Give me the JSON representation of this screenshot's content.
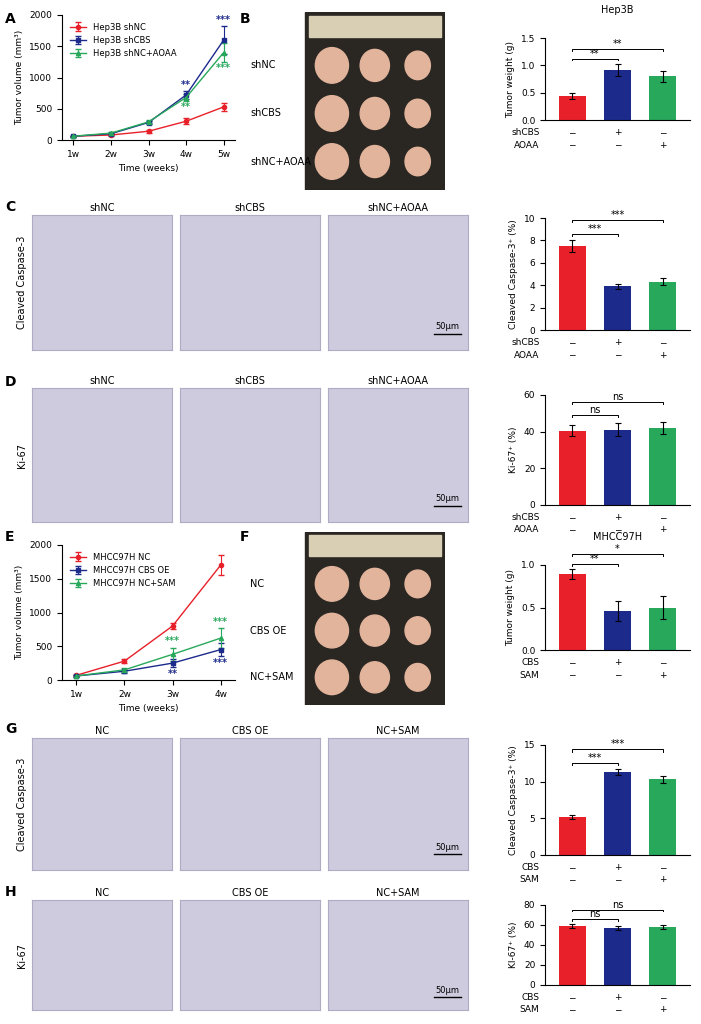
{
  "chart_data": [
    {
      "panel": "A",
      "type": "line",
      "x_label": "Time (weeks)",
      "y_label": "Tumor volume (mm³)",
      "categories": [
        "1w",
        "2w",
        "3w",
        "4w",
        "5w"
      ],
      "ylim": [
        0,
        2000
      ],
      "yticks": [
        0,
        500,
        1000,
        1500,
        2000
      ],
      "legend": "upper left",
      "series": [
        {
          "name": "Hep3B shNC",
          "color": "#e8202a",
          "marker": "circle",
          "values": [
            60,
            80,
            140,
            300,
            530
          ],
          "errors": [
            10,
            15,
            20,
            50,
            60
          ]
        },
        {
          "name": "Hep3B shCBS",
          "color": "#1c2a8c",
          "marker": "square",
          "values": [
            60,
            100,
            280,
            720,
            1600
          ],
          "errors": [
            10,
            15,
            20,
            60,
            220
          ]
        },
        {
          "name": "Hep3B shNC+AOAA",
          "color": "#27a85b",
          "marker": "triangle",
          "values": [
            60,
            110,
            290,
            680,
            1400
          ],
          "errors": [
            10,
            15,
            25,
            50,
            150
          ]
        }
      ],
      "annotations": [
        {
          "x": "4w",
          "series": "Hep3B shCBS",
          "text": "**"
        },
        {
          "x": "4w",
          "series": "Hep3B shNC+AOAA",
          "text": "**"
        },
        {
          "x": "5w",
          "series": "Hep3B shCBS",
          "text": "***"
        },
        {
          "x": "5w",
          "series": "Hep3B shNC+AOAA",
          "text": "***"
        }
      ]
    },
    {
      "panel": "B",
      "type": "bar",
      "title": "Hep3B",
      "y_label": "Tumor weight (g)",
      "categories": [
        null,
        null,
        null
      ],
      "values": [
        0.44,
        0.92,
        0.8
      ],
      "errors": [
        0.05,
        0.11,
        0.1
      ],
      "colors": [
        "#e8202a",
        "#1c2a8c",
        "#27a85b"
      ],
      "ylim": [
        0,
        1.5
      ],
      "yticks": [
        {
          "value": 0,
          "label": "0.0"
        },
        {
          "value": 0.5,
          "label": "0.5"
        },
        {
          "value": 1.0,
          "label": "1.0"
        },
        {
          "value": 1.5,
          "label": "1.5"
        }
      ],
      "condition_table": [
        {
          "label": "shCBS",
          "marks": [
            "−",
            "+",
            "−"
          ]
        },
        {
          "label": "AOAA",
          "marks": [
            "−",
            "−",
            "+"
          ]
        }
      ],
      "comparisons": [
        {
          "from": 0,
          "to": 1,
          "label": "**"
        },
        {
          "from": 0,
          "to": 2,
          "label": "**"
        }
      ]
    },
    {
      "panel": "C",
      "type": "bar",
      "y_label": "Cleaved Caspase-3⁺ (%)",
      "categories": [
        null,
        null,
        null
      ],
      "values": [
        7.5,
        3.9,
        4.3
      ],
      "errors": [
        0.5,
        0.2,
        0.3
      ],
      "colors": [
        "#e8202a",
        "#1c2a8c",
        "#27a85b"
      ],
      "ylim": [
        0,
        10
      ],
      "yticks": [
        0,
        2,
        4,
        6,
        8,
        10
      ],
      "condition_table": [
        {
          "label": "shCBS",
          "marks": [
            "−",
            "+",
            "−"
          ]
        },
        {
          "label": "AOAA",
          "marks": [
            "−",
            "−",
            "+"
          ]
        }
      ],
      "comparisons": [
        {
          "from": 0,
          "to": 1,
          "label": "***"
        },
        {
          "from": 0,
          "to": 2,
          "label": "***"
        }
      ]
    },
    {
      "panel": "D",
      "type": "bar",
      "y_label": "Ki-67⁺ (%)",
      "categories": [
        null,
        null,
        null
      ],
      "values": [
        40.5,
        41,
        42
      ],
      "errors": [
        3,
        3.5,
        3.5
      ],
      "colors": [
        "#e8202a",
        "#1c2a8c",
        "#27a85b"
      ],
      "ylim": [
        0,
        60
      ],
      "yticks": [
        0,
        20,
        40,
        60
      ],
      "condition_table": [
        {
          "label": "shCBS",
          "marks": [
            "−",
            "+",
            "−"
          ]
        },
        {
          "label": "AOAA",
          "marks": [
            "−",
            "−",
            "+"
          ]
        }
      ],
      "comparisons": [
        {
          "from": 0,
          "to": 1,
          "label": "ns"
        },
        {
          "from": 0,
          "to": 2,
          "label": "ns"
        }
      ]
    },
    {
      "panel": "E",
      "type": "line",
      "x_label": "Time (weeks)",
      "y_label": "Tumor volume (mm³)",
      "categories": [
        "1w",
        "2w",
        "3w",
        "4w"
      ],
      "ylim": [
        0,
        2000
      ],
      "yticks": [
        0,
        500,
        1000,
        1500,
        2000
      ],
      "legend": "upper left",
      "series": [
        {
          "name": "MHCC97H NC",
          "color": "#e8202a",
          "marker": "circle",
          "values": [
            70,
            280,
            800,
            1700
          ],
          "errors": [
            10,
            30,
            50,
            150
          ]
        },
        {
          "name": "MHCC97H CBS OE",
          "color": "#1c2a8c",
          "marker": "square",
          "values": [
            60,
            130,
            250,
            450
          ],
          "errors": [
            10,
            20,
            60,
            100
          ]
        },
        {
          "name": "MHCC97H NC+SAM",
          "color": "#27a85b",
          "marker": "triangle",
          "values": [
            60,
            150,
            380,
            620
          ],
          "errors": [
            10,
            30,
            100,
            150
          ]
        }
      ],
      "annotations": [
        {
          "x": "3w",
          "series": "MHCC97H NC+SAM",
          "text": "***"
        },
        {
          "x": "3w",
          "series": "MHCC97H CBS OE",
          "text": "**"
        },
        {
          "x": "4w",
          "series": "MHCC97H NC+SAM",
          "text": "***"
        },
        {
          "x": "4w",
          "series": "MHCC97H CBS OE",
          "text": "***"
        }
      ]
    },
    {
      "panel": "F",
      "type": "bar",
      "title": "MHCC97H",
      "y_label": "Tumor weight (g)",
      "categories": [
        null,
        null,
        null
      ],
      "values": [
        0.89,
        0.46,
        0.5
      ],
      "errors": [
        0.06,
        0.12,
        0.13
      ],
      "colors": [
        "#e8202a",
        "#1c2a8c",
        "#27a85b"
      ],
      "ylim": [
        0,
        1.0
      ],
      "yticks": [
        {
          "value": 0,
          "label": "0.0"
        },
        {
          "value": 0.5,
          "label": "0.5"
        },
        {
          "value": 1.0,
          "label": "1.0"
        }
      ],
      "condition_table": [
        {
          "label": "CBS",
          "marks": [
            "−",
            "+",
            "−"
          ]
        },
        {
          "label": "SAM",
          "marks": [
            "−",
            "−",
            "+"
          ]
        }
      ],
      "comparisons": [
        {
          "from": 0,
          "to": 1,
          "label": "**"
        },
        {
          "from": 0,
          "to": 2,
          "label": "*"
        }
      ]
    },
    {
      "panel": "G",
      "type": "bar",
      "y_label": "Cleaved Caspase-3⁺ (%)",
      "categories": [
        null,
        null,
        null
      ],
      "values": [
        5.2,
        11.3,
        10.3
      ],
      "errors": [
        0.3,
        0.4,
        0.5
      ],
      "colors": [
        "#e8202a",
        "#1c2a8c",
        "#27a85b"
      ],
      "ylim": [
        0,
        15
      ],
      "yticks": [
        0,
        5,
        10,
        15
      ],
      "condition_table": [
        {
          "label": "CBS",
          "marks": [
            "−",
            "+",
            "−"
          ]
        },
        {
          "label": "SAM",
          "marks": [
            "−",
            "−",
            "+"
          ]
        }
      ],
      "comparisons": [
        {
          "from": 0,
          "to": 1,
          "label": "***"
        },
        {
          "from": 0,
          "to": 2,
          "label": "***"
        }
      ]
    },
    {
      "panel": "H",
      "type": "bar",
      "y_label": "KI-67⁺ (%)",
      "categories": [
        null,
        null,
        null
      ],
      "values": [
        59,
        57,
        58
      ],
      "errors": [
        2,
        2,
        2
      ],
      "colors": [
        "#e8202a",
        "#1c2a8c",
        "#27a85b"
      ],
      "ylim": [
        0,
        80
      ],
      "yticks": [
        0,
        20,
        40,
        60,
        80
      ],
      "condition_table": [
        {
          "label": "CBS",
          "marks": [
            "−",
            "+",
            "−"
          ]
        },
        {
          "label": "SAM",
          "marks": [
            "−",
            "−",
            "+"
          ]
        }
      ],
      "comparisons": [
        {
          "from": 0,
          "to": 1,
          "label": "ns"
        },
        {
          "from": 0,
          "to": 2,
          "label": "ns"
        }
      ]
    }
  ],
  "images": [
    {
      "panel": "B",
      "type": "photo",
      "row_labels": [
        "shNC",
        "shCBS",
        "shNC+AOAA"
      ]
    },
    {
      "panel": "C",
      "type": "micrograph",
      "row_label": "Cleaved Caspase-3",
      "column_labels": [
        "shNC",
        "shCBS",
        "shNC+AOAA"
      ],
      "scale_bar": "50μm"
    },
    {
      "panel": "D",
      "type": "micrograph",
      "row_label": "Ki-67",
      "column_labels": [
        "shNC",
        "shCBS",
        "shNC+AOAA"
      ],
      "scale_bar": "50μm"
    },
    {
      "panel": "F",
      "type": "photo",
      "row_labels": [
        "NC",
        "CBS OE",
        "NC+SAM"
      ]
    },
    {
      "panel": "G",
      "type": "micrograph",
      "row_label": "Cleaved Caspase-3",
      "column_labels": [
        "NC",
        "CBS OE",
        "NC+SAM"
      ],
      "scale_bar": "50μm"
    },
    {
      "panel": "H",
      "type": "micrograph",
      "row_label": "Ki-67",
      "column_labels": [
        "NC",
        "CBS OE",
        "NC+SAM"
      ],
      "scale_bar": "50μm"
    }
  ]
}
